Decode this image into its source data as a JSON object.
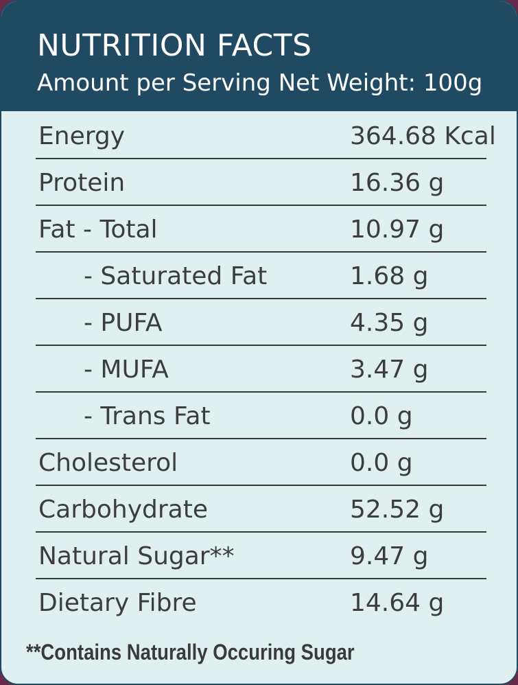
{
  "header": {
    "title": "NUTRITION FACTS",
    "subtitle": "Amount per Serving Net Weight: 100g"
  },
  "rows": [
    {
      "label": "Energy",
      "value": "364.68 Kcal"
    },
    {
      "label": "Protein",
      "value": "16.36 g"
    },
    {
      "label": "Fat - Total",
      "value": "10.97 g"
    },
    {
      "label": "- Saturated Fat",
      "value": "1.68 g"
    },
    {
      "label": "- PUFA",
      "value": "4.35 g"
    },
    {
      "label": "- MUFA",
      "value": "3.47 g"
    },
    {
      "label": "- Trans Fat",
      "value": "0.0 g"
    },
    {
      "label": "Cholesterol",
      "value": "0.0 g"
    },
    {
      "label": "Carbohydrate",
      "value": "52.52 g"
    },
    {
      "label": "Natural Sugar**",
      "value": "9.47 g"
    },
    {
      "label": "Dietary Fibre",
      "value": "14.64 g"
    }
  ],
  "footnote": "**Contains Naturally Occuring Sugar",
  "colors": {
    "header_bg": "#1f4a62",
    "panel_bg": "#e0f0f1",
    "text": "#3d3d3d"
  }
}
